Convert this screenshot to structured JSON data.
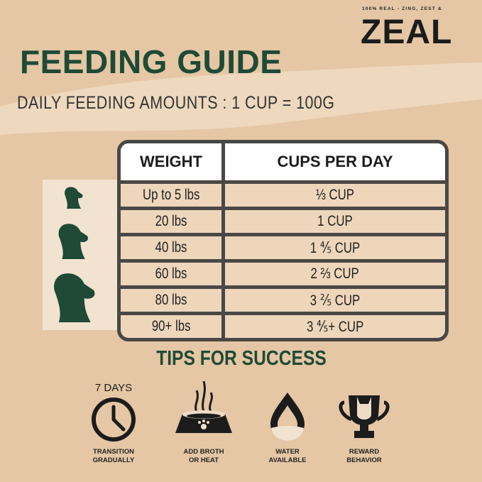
{
  "brand": {
    "tagline": "100% REAL - ZING, ZEST &",
    "logo": "ZEAL"
  },
  "header": {
    "title": "FEEDING GUIDE",
    "subtitle": "DAILY FEEDING AMOUNTS : 1 CUP = 100G"
  },
  "table": {
    "headers": [
      "WEIGHT",
      "CUPS PER DAY"
    ],
    "rows": [
      {
        "weight": "Up to 5 lbs",
        "cups": "⅓ CUP"
      },
      {
        "weight": "20 lbs",
        "cups": "1 CUP"
      },
      {
        "weight": "40 lbs",
        "cups": "1 ⅘ CUP"
      },
      {
        "weight": "60 lbs",
        "cups": "2 ⅔ CUP"
      },
      {
        "weight": "80 lbs",
        "cups": "3 ⅖ CUP"
      },
      {
        "weight": "90+ lbs",
        "cups": "3 ⅘+ CUP"
      }
    ]
  },
  "tips": {
    "title": "TIPS FOR SUCCESS",
    "items": [
      {
        "icon": "clock-icon",
        "badge": "7 DAYS",
        "line1": "TRANSITION",
        "line2": "GRADUALLY"
      },
      {
        "icon": "bowl-icon",
        "line1": "ADD BROTH",
        "line2": "OR HEAT"
      },
      {
        "icon": "water-drop-icon",
        "line1": "WATER",
        "line2": "AVAILABLE"
      },
      {
        "icon": "trophy-icon",
        "line1": "REWARD",
        "line2": "BEHAVIOR"
      }
    ]
  },
  "colors": {
    "background": "#e5c7a5",
    "accent_green": "#1f4a35",
    "table_border": "#4a4846"
  }
}
